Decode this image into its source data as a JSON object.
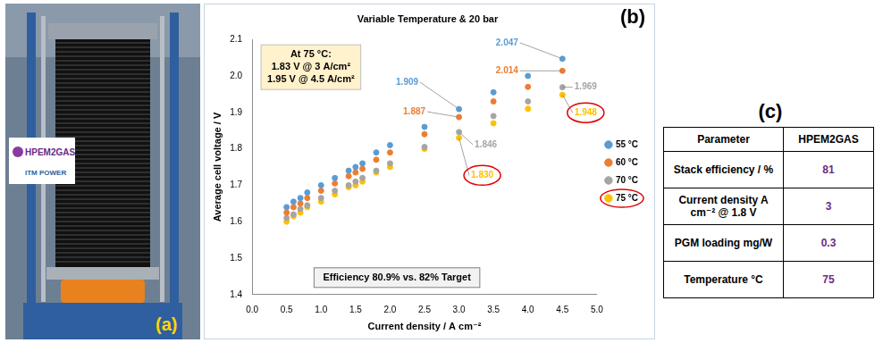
{
  "photo": {
    "label": "(a)",
    "logos": [
      "HPEM2GAS",
      "ITM POWER"
    ]
  },
  "chart_data": {
    "type": "scatter",
    "panel_label": "(b)",
    "title": "Variable Temperature & 20 bar",
    "x_label": "Current density / A cm⁻²",
    "y_label": "Average cell voltage / V",
    "xlim": [
      0,
      5
    ],
    "xticks": [
      {
        "value": 0,
        "label": "0.0"
      },
      0.5,
      {
        "value": 1,
        "label": "1.0"
      },
      1.5,
      {
        "value": 2,
        "label": "2.0"
      },
      2.5,
      {
        "value": 3,
        "label": "3.0"
      },
      3.5,
      {
        "value": 4,
        "label": "4.0"
      },
      4.5,
      {
        "value": 5,
        "label": "5.0"
      }
    ],
    "ylim": [
      1.4,
      2.1
    ],
    "yticks": [
      1.4,
      1.5,
      1.6,
      1.7,
      1.8,
      1.9,
      {
        "value": 2,
        "label": "2.0"
      },
      2.1
    ],
    "grid": false,
    "legend": "right",
    "marker": "circle",
    "x": [
      0.5,
      0.6,
      0.7,
      0.8,
      1.0,
      1.2,
      1.4,
      1.5,
      1.6,
      1.8,
      2.0,
      2.5,
      3.0,
      3.5,
      4.0,
      4.5
    ],
    "series": [
      {
        "name": "55 °C",
        "color": "#5b9bd5",
        "values": [
          1.64,
          1.655,
          1.665,
          1.68,
          1.7,
          1.72,
          1.74,
          1.75,
          1.76,
          1.79,
          1.81,
          1.86,
          1.909,
          1.955,
          2.0,
          2.047
        ]
      },
      {
        "name": "60 °C",
        "color": "#ed7d31",
        "values": [
          1.625,
          1.64,
          1.65,
          1.665,
          1.685,
          1.705,
          1.725,
          1.735,
          1.745,
          1.77,
          1.79,
          1.84,
          1.887,
          1.93,
          1.97,
          2.014
        ]
      },
      {
        "name": "70 °C",
        "color": "#a5a5a5",
        "values": [
          1.61,
          1.62,
          1.635,
          1.645,
          1.665,
          1.685,
          1.7,
          1.71,
          1.72,
          1.74,
          1.76,
          1.805,
          1.846,
          1.89,
          1.93,
          1.969
        ]
      },
      {
        "name": "75 °C",
        "color": "#ffc000",
        "values": [
          1.6,
          1.615,
          1.625,
          1.64,
          1.655,
          1.675,
          1.695,
          1.7,
          1.71,
          1.735,
          1.75,
          1.8,
          1.83,
          1.87,
          1.91,
          1.948
        ]
      }
    ],
    "annotations": [
      {
        "text": "1.909",
        "series": "55 °C",
        "x": 3.0,
        "y": 1.909
      },
      {
        "text": "1.887",
        "series": "60 °C",
        "x": 3.0,
        "y": 1.887
      },
      {
        "text": "1.846",
        "series": "70 °C",
        "x": 3.0,
        "y": 1.846
      },
      {
        "text": "1.830",
        "series": "75 °C",
        "x": 3.0,
        "y": 1.83
      },
      {
        "text": "2.047",
        "series": "55 °C",
        "x": 4.5,
        "y": 2.047
      },
      {
        "text": "2.014",
        "series": "60 °C",
        "x": 4.5,
        "y": 2.014
      },
      {
        "text": "1.969",
        "series": "70 °C",
        "x": 4.5,
        "y": 1.969
      },
      {
        "text": "1.948",
        "series": "75 °C",
        "x": 4.5,
        "y": 1.948
      }
    ],
    "text_boxes": [
      {
        "lines": [
          "At 75 °C:",
          "1.83 V @ 3 A/cm²",
          "1.95 V @ 4.5 A/cm²"
        ]
      },
      {
        "lines": [
          "Efficiency 80.9% vs. 82% Target"
        ]
      }
    ]
  },
  "table": {
    "label": "(c)",
    "header": [
      "Parameter",
      "HPEM2GAS"
    ],
    "rows": [
      [
        "Stack efficiency / %",
        81
      ],
      [
        "Current density A cm⁻² @ 1.8 V",
        3
      ],
      [
        "PGM loading mg/W",
        0.3
      ],
      [
        "Temperature °C",
        75
      ]
    ]
  }
}
